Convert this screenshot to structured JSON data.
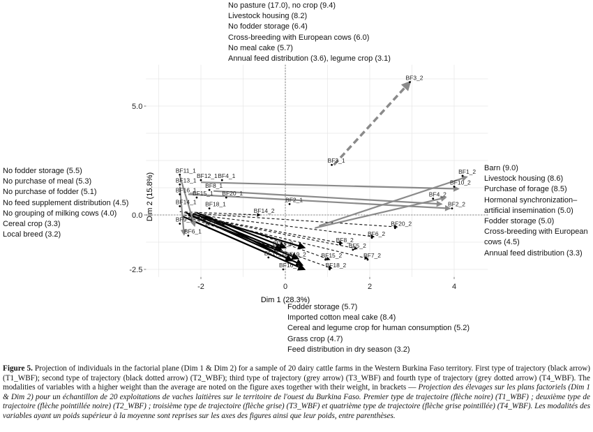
{
  "chart_data": {
    "type": "scatter",
    "xlabel": "Dim 1 (28.3%)",
    "ylabel": "Dim 2 (15.8%)",
    "xlim": [
      -3.3,
      4.8
    ],
    "ylim": [
      -2.85,
      6.9
    ],
    "x_ticks": [
      -2,
      0,
      2,
      4
    ],
    "x_tick_labels": [
      "-2",
      "0",
      "2",
      "4"
    ],
    "y_ticks": [
      -2.5,
      0,
      5
    ],
    "y_tick_labels": [
      "-2.5",
      "0.0",
      "5.0"
    ],
    "grid": true,
    "points": [
      {
        "label": "BF3_2",
        "x": 2.95,
        "y": 6.1
      },
      {
        "label": "BF3_1",
        "x": 1.1,
        "y": 2.3
      },
      {
        "label": "BF1_2",
        "x": 4.2,
        "y": 1.8
      },
      {
        "label": "BF10_2",
        "x": 4.0,
        "y": 1.3
      },
      {
        "label": "BF4_2",
        "x": 3.5,
        "y": 0.75
      },
      {
        "label": "BF2_2",
        "x": 3.95,
        "y": 0.3
      },
      {
        "label": "BF2_1",
        "x": 0.1,
        "y": 0.5
      },
      {
        "label": "BF11_1",
        "x": -2.5,
        "y": 1.85
      },
      {
        "label": "BF12_1",
        "x": -2.0,
        "y": 1.6
      },
      {
        "label": "BF4_1",
        "x": -1.5,
        "y": 1.6
      },
      {
        "label": "BF13_1",
        "x": -2.5,
        "y": 1.4
      },
      {
        "label": "BF8_1",
        "x": -1.8,
        "y": 1.15
      },
      {
        "label": "BF16_1",
        "x": -2.5,
        "y": 0.95
      },
      {
        "label": "BF15_1",
        "x": -2.1,
        "y": 0.8
      },
      {
        "label": "BF20_1",
        "x": -1.4,
        "y": 0.8
      },
      {
        "label": "BF14_1",
        "x": -2.5,
        "y": 0.4
      },
      {
        "label": "BF18_1",
        "x": -1.8,
        "y": 0.3
      },
      {
        "label": "BF9_1",
        "x": -2.5,
        "y": -0.4
      },
      {
        "label": "BF7_1",
        "x": -1.8,
        "y": -0.6
      },
      {
        "label": "BF6_1",
        "x": -2.3,
        "y": -0.95
      },
      {
        "label": "BF14_2",
        "x": -0.65,
        "y": 0.0
      },
      {
        "label": "BF20_2",
        "x": 2.6,
        "y": -0.6
      },
      {
        "label": "BF6_2",
        "x": 2.05,
        "y": -1.05
      },
      {
        "label": "BF8_2",
        "x": 1.3,
        "y": -1.35
      },
      {
        "label": "BF5_2",
        "x": 1.6,
        "y": -1.6
      },
      {
        "label": "BF7_2",
        "x": 1.95,
        "y": -2.05
      },
      {
        "label": "BF11_2",
        "x": -0.2,
        "y": -1.5
      },
      {
        "label": "BF17_2",
        "x": -0.4,
        "y": -1.95
      },
      {
        "label": "BF19_2",
        "x": 0.1,
        "y": -2.0
      },
      {
        "label": "BF16_2",
        "x": -0.05,
        "y": -2.5
      },
      {
        "label": "BF15_2",
        "x": 0.95,
        "y": -2.05
      },
      {
        "label": "BF18_2",
        "x": 1.05,
        "y": -2.5
      }
    ],
    "arrows": [
      {
        "type": "T1_WBF",
        "from": [
          -2.2,
          0.05
        ],
        "to": [
          0.45,
          -1.5
        ]
      },
      {
        "type": "T1_WBF",
        "from": [
          -2.3,
          0.0
        ],
        "to": [
          0.3,
          -2.0
        ]
      },
      {
        "type": "T1_WBF",
        "from": [
          -2.0,
          -0.1
        ],
        "to": [
          -0.1,
          -1.6
        ]
      },
      {
        "type": "T1_WBF",
        "from": [
          -2.45,
          -0.05
        ],
        "to": [
          0.45,
          -2.5
        ]
      },
      {
        "type": "T1_WBF",
        "from": [
          -2.1,
          0.1
        ],
        "to": [
          0.0,
          -1.5
        ]
      },
      {
        "type": "T1_WBF",
        "from": [
          -2.35,
          0.1
        ],
        "to": [
          0.4,
          -2.3
        ]
      },
      {
        "type": "T1_WBF",
        "from": [
          -1.9,
          -0.05
        ],
        "to": [
          0.15,
          -2.1
        ]
      },
      {
        "type": "T2_WBF",
        "from": [
          -2.4,
          0.1
        ],
        "to": [
          2.65,
          -0.55
        ]
      },
      {
        "type": "T2_WBF",
        "from": [
          -2.3,
          0.05
        ],
        "to": [
          2.1,
          -1.0
        ]
      },
      {
        "type": "T2_WBF",
        "from": [
          -2.2,
          -0.05
        ],
        "to": [
          1.35,
          -1.3
        ]
      },
      {
        "type": "T2_WBF",
        "from": [
          -2.1,
          -0.1
        ],
        "to": [
          1.7,
          -1.55
        ]
      },
      {
        "type": "T2_WBF",
        "from": [
          -2.4,
          0.0
        ],
        "to": [
          1.95,
          -2.0
        ]
      },
      {
        "type": "T2_WBF",
        "from": [
          -2.0,
          0.05
        ],
        "to": [
          1.05,
          -2.05
        ]
      },
      {
        "type": "T2_WBF",
        "from": [
          -2.3,
          -0.1
        ],
        "to": [
          1.1,
          -2.45
        ]
      },
      {
        "type": "T2_WBF",
        "from": [
          -2.5,
          0.15
        ],
        "to": [
          -0.6,
          0.0
        ]
      },
      {
        "type": "T3_WBF",
        "from": [
          -2.0,
          1.5
        ],
        "to": [
          4.1,
          1.2
        ]
      },
      {
        "type": "T3_WBF",
        "from": [
          -1.7,
          1.1
        ],
        "to": [
          3.7,
          0.5
        ]
      },
      {
        "type": "T3_WBF",
        "from": [
          -2.3,
          0.95
        ],
        "to": [
          3.9,
          0.3
        ]
      },
      {
        "type": "T3_WBF",
        "from": [
          0.8,
          -0.5
        ],
        "to": [
          4.3,
          1.75
        ]
      },
      {
        "type": "T3_WBF",
        "from": [
          0.7,
          -0.6
        ],
        "to": [
          3.8,
          0.8
        ]
      },
      {
        "type": "T3_WBF",
        "from": [
          -2.5,
          1.8
        ],
        "to": [
          -2.15,
          -0.5
        ]
      },
      {
        "type": "T3_WBF",
        "from": [
          -2.5,
          1.3
        ],
        "to": [
          -2.4,
          -0.9
        ]
      },
      {
        "type": "T4_WBF",
        "from": [
          1.15,
          2.3
        ],
        "to": [
          2.95,
          6.1
        ]
      }
    ]
  },
  "modalities": {
    "top": [
      "No pasture (17.0), no crop (9.4)",
      "Livestock housing (8.2)",
      "No fodder storage (6.4)",
      "Cross-breeding with European cows (6.0)",
      "No meal cake (5.7)",
      "Annual feed distribution (3.6), legume crop (3.1)"
    ],
    "left": [
      "No fodder storage (5.5)",
      "No purchase of meal (5.3)",
      "No purchase of fodder (5.1)",
      "No feed supplement distribution (4.5)",
      "No grouping of milking cows (4.0)",
      "Cereal crop (3.3)",
      "Local breed (3.2)"
    ],
    "right": [
      "Barn (9.0)",
      "Livestock housing (8.6)",
      "Purchase of forage (8.5)",
      "Hormonal synchronization–",
      "artificial insemination (5.0)",
      "Fodder storage (5.0)",
      "Cross-breeding with European",
      "cows (4.5)",
      "Annual feed distribution (3.3)"
    ],
    "bottom": [
      "Fodder storage (5.7)",
      "Imported cotton meal cake (8.4)",
      "Cereal and legume crop for human consumption (5.2)",
      "Grass crop (4.7)",
      "Feed distribution in dry season (3.2)"
    ]
  },
  "caption": {
    "label": "Figure 5.",
    "english": " Projection of individuals in the factorial plane (Dim 1 & Dim 2) for a sample of 20 dairy cattle farms in the Western Burkina Faso territory. First type of trajectory (black arrow) (T1_WBF); second type of trajectory (black dotted arrow) (T2_WBF); third type of trajectory (grey arrow) (T3_WBF) and fourth type of trajectory (grey dotted arrow) (T4_WBF). The modalities of variables with a higher weight than the average are noted on the figure axes together with their weight, in brackets — ",
    "french": "Projection des élevages sur les plans factoriels (Dim 1 & Dim 2) pour un échantillon de 20 exploitations de vaches laitières sur le territoire de l'ouest du Burkina Faso. Premier type de trajectoire (flèche noire) (T1_WBF) ; deuxième type de trajectoire (flèche pointillée noire) (T2_WBF) ; troisième type de trajectoire (flèche grise) (T3_WBF) et quatrième type de trajectoire (flèche grise pointillée) (T4_WBF). Les modalités des variables ayant un poids supérieur à la moyenne sont reprises sur les axes des figures ainsi que leur poids, entre parenthèses."
  },
  "colors": {
    "t1": "#000000",
    "t2": "#111111",
    "t3": "#8a8a8a",
    "t4": "#8a8a8a",
    "grid": "#e6e6e6",
    "zero_line": "#555555"
  }
}
